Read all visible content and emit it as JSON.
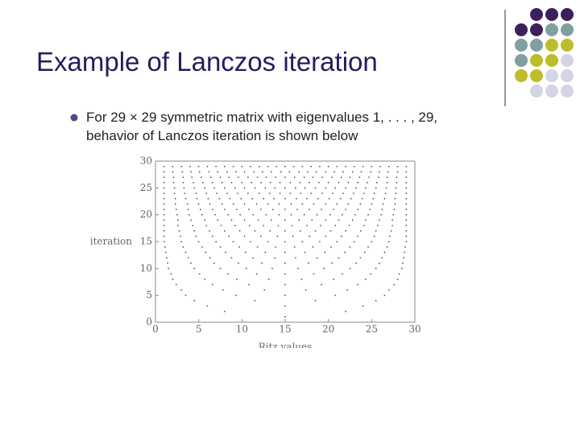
{
  "slide": {
    "title": "Example of Lanczos iteration",
    "bullet": "For 29 × 29 symmetric matrix with eigenvalues 1, . . . , 29,",
    "bullet_cont": "behavior of Lanczos iteration is shown below"
  },
  "chart_data": {
    "type": "scatter",
    "xlabel": "Ritz values",
    "ylabel": "iteration",
    "color": "#555555",
    "xlim": [
      0,
      30
    ],
    "ylim": [
      0,
      30
    ],
    "xticks": [
      0,
      5,
      10,
      15,
      20,
      25,
      30
    ],
    "yticks": [
      0,
      5,
      10,
      15,
      20,
      25,
      30
    ],
    "series": [
      {
        "iteration": 1,
        "x": [
          15
        ]
      },
      {
        "iteration": 2,
        "x": [
          8,
          22
        ]
      },
      {
        "iteration": 3,
        "x": [
          6,
          15,
          24
        ]
      },
      {
        "iteration": 4,
        "x": [
          4.5,
          11.5,
          18.5,
          25.5
        ]
      },
      {
        "iteration": 5,
        "x": [
          3.5,
          9.3,
          15,
          20.8,
          26.5
        ]
      },
      {
        "iteration": 6,
        "x": [
          3,
          7.8,
          12.6,
          17.4,
          22.2,
          27
        ]
      },
      {
        "iteration": 7,
        "x": [
          2.4,
          6.6,
          10.8,
          15,
          19.2,
          23.4,
          27.6
        ]
      },
      {
        "iteration": 8,
        "x": [
          2,
          5.7,
          9.4,
          13.1,
          16.9,
          20.6,
          24.3,
          28
        ]
      },
      {
        "iteration": 9,
        "x": [
          1.8,
          5.1,
          8.4,
          11.7,
          15,
          18.3,
          21.6,
          24.9,
          28.2
        ]
      },
      {
        "iteration": 10,
        "x": [
          1.5,
          4.5,
          7.5,
          10.5,
          13.5,
          16.5,
          19.5,
          22.5,
          25.5,
          28.5
        ]
      },
      {
        "iteration": 11,
        "x": [
          1.4,
          4.1,
          6.8,
          9.6,
          12.3,
          15,
          17.7,
          20.4,
          23.2,
          25.9,
          28.6
        ]
      },
      {
        "iteration": 12,
        "x": [
          1.3,
          3.8,
          6.3,
          8.8,
          11.3,
          13.8,
          16.2,
          18.7,
          21.2,
          23.7,
          26.2,
          28.7
        ]
      },
      {
        "iteration": 13,
        "x": [
          1.2,
          3.5,
          5.8,
          8.1,
          10.4,
          12.7,
          15,
          17.3,
          19.6,
          21.9,
          24.2,
          26.5,
          28.8
        ]
      },
      {
        "iteration": 14,
        "x": [
          1.1,
          3.2,
          5.4,
          7.5,
          9.7,
          11.8,
          13.9,
          16.1,
          18.2,
          20.3,
          22.5,
          24.6,
          26.8,
          28.9
        ]
      },
      {
        "iteration": 15,
        "x": [
          1,
          3,
          5,
          7,
          9,
          11,
          13,
          15,
          17,
          19,
          21,
          23,
          25,
          27,
          29
        ]
      },
      {
        "iteration": 16,
        "x": [
          1,
          2.9,
          4.7,
          6.6,
          8.5,
          10.3,
          12.2,
          14.1,
          15.9,
          17.8,
          19.7,
          21.5,
          23.4,
          25.3,
          27.1,
          29
        ]
      },
      {
        "iteration": 17,
        "x": [
          1,
          2.75,
          4.5,
          6.25,
          8,
          9.75,
          11.5,
          13.25,
          15,
          16.75,
          18.5,
          20.25,
          22,
          23.75,
          25.5,
          27.25,
          29
        ]
      },
      {
        "iteration": 18,
        "x": [
          1,
          2.6,
          4.3,
          5.9,
          7.6,
          9.2,
          10.9,
          12.5,
          14.2,
          15.8,
          17.5,
          19.1,
          20.8,
          22.4,
          24.1,
          25.7,
          27.4,
          29
        ]
      },
      {
        "iteration": 19,
        "x": [
          1,
          2.6,
          4.1,
          5.7,
          7.2,
          8.8,
          10.3,
          11.9,
          13.4,
          15,
          16.6,
          18.1,
          19.7,
          21.2,
          22.8,
          24.3,
          25.9,
          27.4,
          29
        ]
      },
      {
        "iteration": 20,
        "x": [
          1,
          2.5,
          3.9,
          5.4,
          6.9,
          8.4,
          9.8,
          11.3,
          12.8,
          14.3,
          15.7,
          17.2,
          18.7,
          20.2,
          21.6,
          23.1,
          24.6,
          26.1,
          27.5,
          29
        ]
      },
      {
        "iteration": 21,
        "x": [
          1,
          2.4,
          3.8,
          5.2,
          6.6,
          8,
          9.4,
          10.8,
          12.2,
          13.6,
          15,
          16.4,
          17.8,
          19.2,
          20.6,
          22,
          23.4,
          24.8,
          26.2,
          27.6,
          29
        ]
      },
      {
        "iteration": 22,
        "x": [
          1,
          2.3,
          3.7,
          5,
          6.3,
          7.7,
          9,
          10.3,
          11.7,
          13,
          14.3,
          15.7,
          17,
          18.3,
          19.7,
          21,
          22.3,
          23.7,
          25,
          26.3,
          27.7,
          29
        ]
      },
      {
        "iteration": 23,
        "x": [
          1,
          2.3,
          3.5,
          4.8,
          6.1,
          7.4,
          8.6,
          9.9,
          11.2,
          12.5,
          13.7,
          15,
          16.3,
          17.5,
          18.8,
          20.1,
          21.4,
          22.6,
          23.9,
          25.2,
          26.5,
          27.7,
          29
        ]
      },
      {
        "iteration": 24,
        "x": [
          1,
          2.2,
          3.4,
          4.7,
          5.9,
          7.1,
          8.3,
          9.5,
          10.7,
          12,
          13.2,
          14.4,
          15.6,
          16.8,
          18,
          19.3,
          20.5,
          21.7,
          22.9,
          24.1,
          25.3,
          26.6,
          27.8,
          29
        ]
      },
      {
        "iteration": 25,
        "x": [
          1,
          2.2,
          3.3,
          4.5,
          5.7,
          6.8,
          8,
          9.2,
          10.3,
          11.5,
          12.7,
          13.8,
          15,
          16.2,
          17.3,
          18.5,
          19.7,
          20.8,
          22,
          23.2,
          24.3,
          25.5,
          26.7,
          27.8,
          29
        ]
      },
      {
        "iteration": 26,
        "x": [
          1,
          2.1,
          3.2,
          4.4,
          5.5,
          6.6,
          7.7,
          8.8,
          10,
          11.1,
          12.2,
          13.3,
          14.4,
          15.6,
          16.7,
          17.8,
          18.9,
          20,
          21.2,
          22.3,
          23.4,
          24.5,
          25.6,
          26.8,
          27.9,
          29
        ]
      },
      {
        "iteration": 27,
        "x": [
          1,
          2.1,
          3.2,
          4.2,
          5.3,
          6.4,
          7.5,
          8.5,
          9.6,
          10.7,
          11.8,
          12.8,
          13.9,
          15,
          16.1,
          17.2,
          18.2,
          19.3,
          20.4,
          21.5,
          22.5,
          23.6,
          24.7,
          25.8,
          26.8,
          27.9,
          29
        ]
      },
      {
        "iteration": 28,
        "x": [
          1,
          2,
          3.1,
          4.1,
          5.1,
          6.2,
          7.2,
          8.3,
          9.3,
          10.3,
          11.4,
          12.4,
          13.4,
          14.5,
          15.5,
          16.6,
          17.6,
          18.6,
          19.7,
          20.7,
          21.7,
          22.8,
          23.8,
          24.9,
          25.9,
          26.9,
          28,
          29
        ]
      },
      {
        "iteration": 29,
        "x": [
          1,
          2,
          3,
          4,
          5,
          6,
          7,
          8,
          9,
          10,
          11,
          12,
          13,
          14,
          15,
          16,
          17,
          18,
          19,
          20,
          21,
          22,
          23,
          24,
          25,
          26,
          27,
          28,
          29
        ]
      }
    ]
  }
}
